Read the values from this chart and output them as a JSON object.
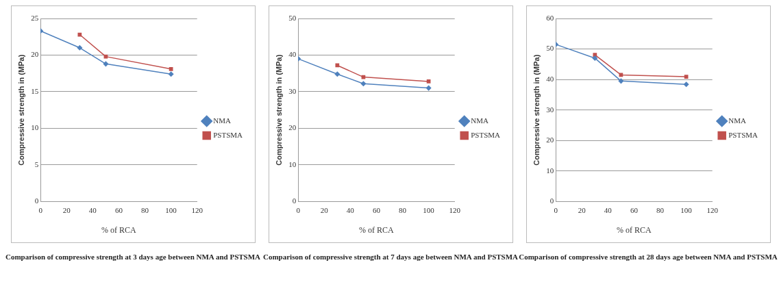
{
  "chart_data": [
    {
      "type": "line",
      "xlabel": "% of RCA",
      "ylabel": "Compressive strength in (MPa)",
      "xlim": [
        0,
        120
      ],
      "xticks": [
        0,
        20,
        40,
        60,
        80,
        100,
        120
      ],
      "ylim": [
        0,
        25
      ],
      "yticks": [
        0,
        5,
        10,
        15,
        20,
        25
      ],
      "grid": "y",
      "legend": "right",
      "line_style": "solid",
      "series": [
        {
          "name": "NMA",
          "color": "#4f81bd",
          "marker": "diamond",
          "x": [
            0,
            30,
            50,
            100
          ],
          "values": [
            23.3,
            21,
            18.8,
            17.4
          ]
        },
        {
          "name": "PSTSMA",
          "color": "#c0504d",
          "marker": "square",
          "x": [
            30,
            50,
            100
          ],
          "values": [
            22.8,
            19.8,
            18.1
          ]
        }
      ],
      "annotations": [
        "Comparison of compressive strength at 3 days age between NMA and PSTSMA"
      ]
    },
    {
      "type": "line",
      "xlabel": "% of RCA",
      "ylabel": "Compressive strength in (MPa)",
      "xlim": [
        0,
        120
      ],
      "xticks": [
        0,
        20,
        40,
        60,
        80,
        100,
        120
      ],
      "ylim": [
        0,
        50
      ],
      "yticks": [
        0,
        10,
        20,
        30,
        40,
        50
      ],
      "grid": "y",
      "legend": "right",
      "line_style": "solid",
      "series": [
        {
          "name": "NMA",
          "color": "#4f81bd",
          "marker": "diamond",
          "x": [
            0,
            30,
            50,
            100
          ],
          "values": [
            39,
            34.8,
            32.2,
            31
          ]
        },
        {
          "name": "PSTSMA",
          "color": "#c0504d",
          "marker": "square",
          "x": [
            30,
            50,
            100
          ],
          "values": [
            37.2,
            34,
            32.8
          ]
        }
      ],
      "annotations": [
        "Comparison of compressive strength at 7 days age between NMA and PSTSMA"
      ]
    },
    {
      "type": "line",
      "xlabel": "% of RCA",
      "ylabel": "Compressive strength in (MPa)",
      "xlim": [
        0,
        120
      ],
      "xticks": [
        0,
        20,
        40,
        60,
        80,
        100,
        120
      ],
      "ylim": [
        0,
        60
      ],
      "yticks": [
        0,
        10,
        20,
        30,
        40,
        50,
        60
      ],
      "grid": "y",
      "legend": "right",
      "line_style": "solid",
      "series": [
        {
          "name": "NMA",
          "color": "#4f81bd",
          "marker": "diamond",
          "x": [
            0,
            30,
            50,
            100
          ],
          "values": [
            51.5,
            47,
            39.5,
            38.4
          ]
        },
        {
          "name": "PSTSMA",
          "color": "#c0504d",
          "marker": "square",
          "x": [
            30,
            50,
            100
          ],
          "values": [
            48.1,
            41.5,
            40.9
          ]
        }
      ],
      "annotations": [
        "Comparison of compressive strength at 28 days age between NMA and PSTSMA"
      ]
    }
  ]
}
